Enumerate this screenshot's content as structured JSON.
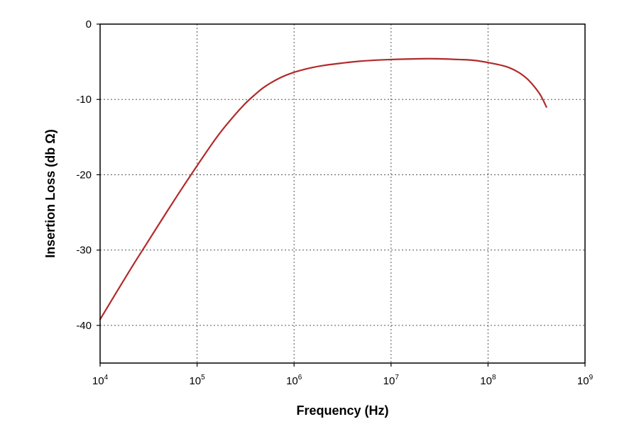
{
  "chart_data": {
    "type": "line",
    "title": "",
    "xlabel": "Frequency (Hz)",
    "ylabel": "Insertion Loss (db Ω)",
    "x_scale": "log",
    "xlim": [
      10000,
      1000000000
    ],
    "ylim": [
      -45,
      0
    ],
    "grid": true,
    "legend": "none",
    "x_ticks": [
      {
        "value": 10000,
        "base": "10",
        "exp": "4"
      },
      {
        "value": 100000,
        "base": "10",
        "exp": "5"
      },
      {
        "value": 1000000,
        "base": "10",
        "exp": "6"
      },
      {
        "value": 10000000,
        "base": "10",
        "exp": "7"
      },
      {
        "value": 100000000,
        "base": "10",
        "exp": "8"
      },
      {
        "value": 1000000000,
        "base": "10",
        "exp": "9"
      }
    ],
    "y_ticks": [
      {
        "value": 0,
        "label": "0"
      },
      {
        "value": -10,
        "label": "-10"
      },
      {
        "value": -20,
        "label": "-20"
      },
      {
        "value": -30,
        "label": "-30"
      },
      {
        "value": -40,
        "label": "-40"
      }
    ],
    "series": [
      {
        "color": "#b22a2a",
        "points": [
          [
            10000,
            -39.2
          ],
          [
            20000,
            -32.8
          ],
          [
            30000,
            -29.2
          ],
          [
            50000,
            -24.7
          ],
          [
            70000,
            -21.8
          ],
          [
            100000,
            -18.8
          ],
          [
            150000,
            -15.5
          ],
          [
            200000,
            -13.4
          ],
          [
            300000,
            -10.8
          ],
          [
            400000,
            -9.3
          ],
          [
            500000,
            -8.3
          ],
          [
            700000,
            -7.2
          ],
          [
            1000000,
            -6.4
          ],
          [
            1500000,
            -5.8
          ],
          [
            2000000,
            -5.5
          ],
          [
            3000000,
            -5.2
          ],
          [
            5000000,
            -4.9
          ],
          [
            10000000,
            -4.7
          ],
          [
            20000000,
            -4.6
          ],
          [
            30000000,
            -4.6
          ],
          [
            50000000,
            -4.7
          ],
          [
            70000000,
            -4.8
          ],
          [
            100000000,
            -5.1
          ],
          [
            150000000,
            -5.6
          ],
          [
            200000000,
            -6.3
          ],
          [
            250000000,
            -7.2
          ],
          [
            300000000,
            -8.3
          ],
          [
            350000000,
            -9.5
          ],
          [
            400000000,
            -11.0
          ]
        ]
      }
    ]
  }
}
